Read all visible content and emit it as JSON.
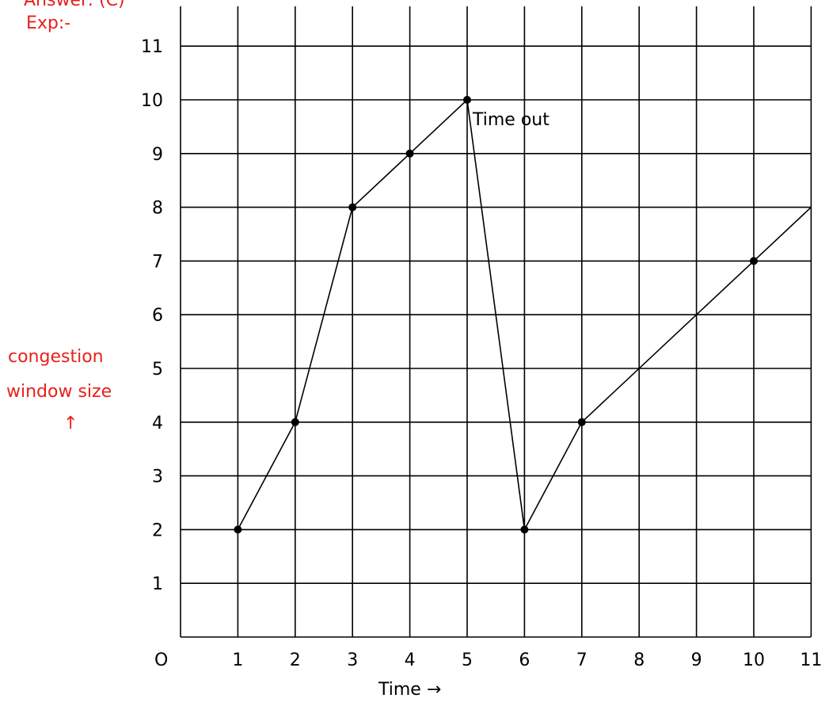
{
  "header": {
    "answer_text": "Answer: (C)",
    "exp_text": "Exp:-"
  },
  "colors": {
    "label_red": "#e8201c",
    "ink": "#000000"
  },
  "chart_data": {
    "type": "line",
    "title": "",
    "xlabel": "Time →",
    "ylabel_lines": [
      "congestion",
      "window size",
      "↑"
    ],
    "origin_label": "O",
    "xlim": [
      0,
      11
    ],
    "ylim": [
      0,
      11
    ],
    "x_ticks": [
      1,
      2,
      3,
      4,
      5,
      6,
      7,
      8,
      9,
      10,
      11
    ],
    "y_ticks": [
      1,
      2,
      3,
      4,
      5,
      6,
      7,
      8,
      9,
      10,
      11
    ],
    "grid": true,
    "series": [
      {
        "points": [
          {
            "x": 1,
            "y": 2
          },
          {
            "x": 2,
            "y": 4
          },
          {
            "x": 3,
            "y": 8
          },
          {
            "x": 4,
            "y": 9
          },
          {
            "x": 5,
            "y": 10
          },
          {
            "x": 6,
            "y": 2
          },
          {
            "x": 7,
            "y": 4
          },
          {
            "x": 10,
            "y": 7
          }
        ],
        "line_extends_to": {
          "x": 11,
          "y": 8
        }
      }
    ],
    "annotations": [
      {
        "text": "Time out",
        "x": 5,
        "y": 10
      }
    ]
  }
}
